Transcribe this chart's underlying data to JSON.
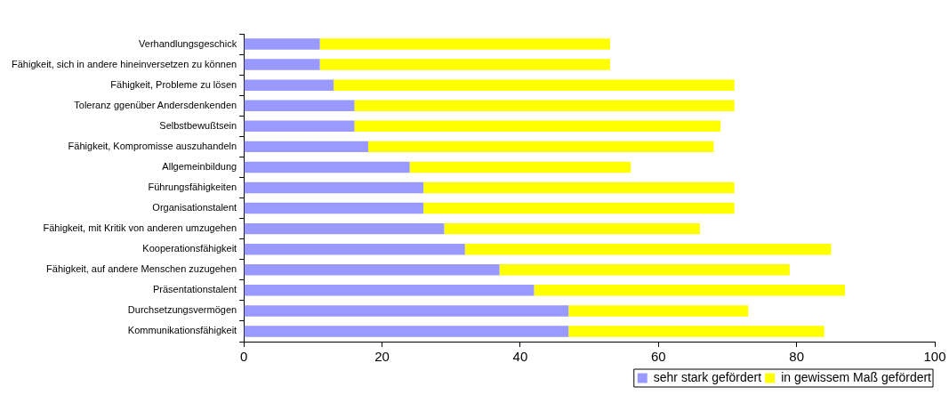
{
  "chart_data": {
    "type": "bar",
    "orientation": "horizontal",
    "stacked": true,
    "categories": [
      "Verhandlungsgeschick",
      "Fähigkeit, sich in andere hineinversetzen zu können",
      "Fähigkeit, Probleme zu lösen",
      "Toleranz ggenüber Andersdenkenden",
      "Selbstbewußtsein",
      "Fähigkeit, Kompromisse auszuhandeln",
      "Allgemeinbildung",
      "Führungsfähigkeiten",
      "Organisationstalent",
      "Fähigkeit, mit Kritik von anderen umzugehen",
      "Kooperationsfähigkeit",
      "Fähigkeit, auf andere Menschen zuzugehen",
      "Präsentationstalent",
      "Durchsetzungsvermögen",
      "Kommunikationsfähigkeit"
    ],
    "series": [
      {
        "name": "sehr stark gefördert",
        "color": "#9999ff",
        "values": [
          11,
          11,
          13,
          16,
          16,
          18,
          24,
          26,
          26,
          29,
          32,
          37,
          42,
          47,
          47
        ]
      },
      {
        "name": "in gewissem Maß gefördert",
        "color": "#ffff00",
        "values": [
          42,
          42,
          58,
          55,
          53,
          50,
          32,
          45,
          45,
          37,
          53,
          42,
          45,
          26,
          37
        ]
      }
    ],
    "xlim": [
      0,
      100
    ],
    "xticks": [
      0,
      20,
      40,
      60,
      80,
      100
    ],
    "grid": false,
    "legend": "bottom"
  }
}
